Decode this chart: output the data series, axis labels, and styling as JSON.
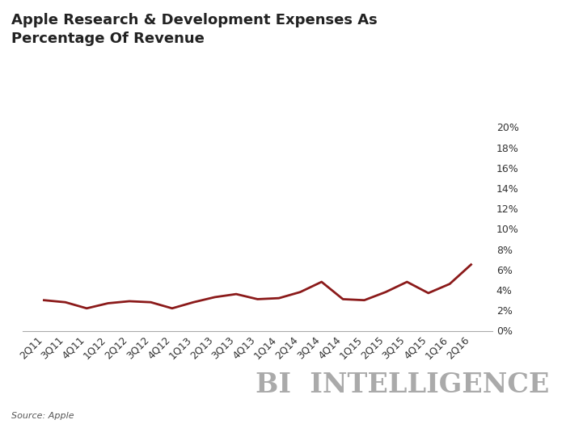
{
  "title": "Apple Research & Development Expenses As\nPercentage Of Revenue",
  "source": "Source: Apple",
  "watermark": "BI  INTELLIGENCE",
  "line_color": "#8B1A1A",
  "line_width": 2.0,
  "background_color": "#ffffff",
  "xlabels": [
    "2Q11",
    "3Q11",
    "4Q11",
    "1Q12",
    "2Q12",
    "3Q12",
    "4Q12",
    "1Q13",
    "2Q13",
    "3Q13",
    "4Q13",
    "1Q14",
    "2Q14",
    "3Q14",
    "4Q14",
    "1Q15",
    "2Q15",
    "3Q15",
    "4Q15",
    "1Q16",
    "2Q16"
  ],
  "values": [
    3.0,
    2.8,
    2.2,
    2.7,
    2.9,
    2.8,
    2.2,
    2.8,
    3.3,
    3.6,
    3.1,
    3.2,
    3.8,
    4.8,
    3.1,
    3.0,
    3.8,
    4.8,
    3.7,
    4.6,
    6.5
  ],
  "ylim": [
    0,
    20
  ],
  "yticks": [
    0,
    2,
    4,
    6,
    8,
    10,
    12,
    14,
    16,
    18,
    20
  ],
  "title_fontsize": 13,
  "axis_label_fontsize": 9,
  "watermark_fontsize": 24,
  "source_fontsize": 8
}
